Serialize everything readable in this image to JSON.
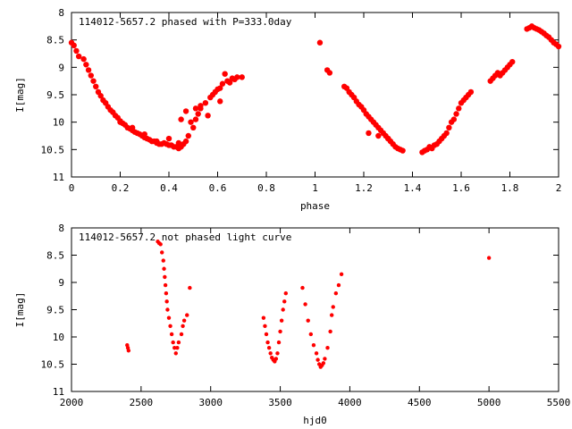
{
  "chart_data": [
    {
      "type": "scatter",
      "title": "114012-5657.2 phased with P=333.0day",
      "xlabel": "phase",
      "ylabel": "I[mag]",
      "xlim": [
        0,
        2
      ],
      "ylim": [
        11,
        8
      ],
      "y_inverted": true,
      "xticks": [
        "0",
        "0.2",
        "0.4",
        "0.6",
        "0.8",
        "1",
        "1.2",
        "1.4",
        "1.6",
        "1.8",
        "2"
      ],
      "yticks": [
        "8",
        "8.5",
        "9",
        "9.5",
        "10",
        "10.5",
        "11"
      ],
      "marker_color": "#ff0000",
      "grid": false,
      "series": [
        {
          "x": [
            0.0,
            0.01,
            0.02,
            0.03,
            0.05,
            0.06,
            0.07,
            0.08,
            0.09,
            0.1,
            0.11,
            0.12,
            0.13,
            0.14,
            0.15,
            0.16,
            0.17,
            0.18,
            0.19,
            0.2,
            0.21,
            0.22,
            0.23,
            0.24,
            0.25,
            0.26,
            0.27,
            0.28,
            0.29,
            0.3,
            0.31,
            0.32,
            0.33,
            0.34,
            0.35,
            0.36,
            0.37,
            0.38,
            0.39,
            0.4,
            0.41,
            0.42,
            0.43,
            0.44,
            0.45,
            0.46,
            0.47,
            0.48,
            0.5,
            0.51,
            0.52,
            0.53,
            0.55,
            0.57,
            0.59,
            0.61,
            0.62,
            0.64,
            0.66,
            0.68,
            0.7,
            0.45,
            0.47,
            0.49,
            0.51,
            0.53,
            0.56,
            0.61,
            0.2,
            0.25,
            0.3,
            0.35,
            0.4,
            0.44,
            0.58,
            0.6,
            0.63,
            0.65,
            0.67
          ],
          "y": [
            8.55,
            8.6,
            8.7,
            8.8,
            8.85,
            8.95,
            9.05,
            9.15,
            9.25,
            9.35,
            9.45,
            9.52,
            9.6,
            9.65,
            9.72,
            9.78,
            9.82,
            9.88,
            9.92,
            9.98,
            10.02,
            10.05,
            10.1,
            10.12,
            10.15,
            10.18,
            10.2,
            10.22,
            10.25,
            10.28,
            10.3,
            10.32,
            10.35,
            10.35,
            10.38,
            10.4,
            10.4,
            10.38,
            10.4,
            10.42,
            10.42,
            10.45,
            10.45,
            10.48,
            10.45,
            10.4,
            10.35,
            10.25,
            10.1,
            9.95,
            9.85,
            9.75,
            9.65,
            9.55,
            9.45,
            9.38,
            9.3,
            9.25,
            9.2,
            9.18,
            9.18,
            9.95,
            9.8,
            10.0,
            9.75,
            9.7,
            9.88,
            9.62,
            10.0,
            10.1,
            10.22,
            10.35,
            10.3,
            10.38,
            9.5,
            9.4,
            9.12,
            9.28,
            9.22
          ]
        },
        {
          "x": [
            1.02,
            1.05,
            1.06,
            1.12,
            1.13,
            1.14,
            1.15,
            1.16,
            1.17,
            1.18,
            1.19,
            1.2,
            1.21,
            1.22,
            1.23,
            1.24,
            1.25,
            1.26,
            1.27,
            1.28,
            1.29,
            1.3,
            1.31,
            1.32,
            1.33,
            1.34,
            1.35,
            1.36,
            1.22,
            1.26,
            1.3,
            1.44,
            1.45,
            1.46,
            1.47,
            1.48,
            1.49,
            1.5,
            1.51,
            1.52,
            1.53,
            1.54,
            1.55,
            1.56,
            1.57,
            1.58,
            1.59,
            1.6,
            1.61,
            1.62,
            1.63,
            1.64,
            1.72,
            1.73,
            1.74,
            1.75,
            1.76,
            1.77,
            1.78,
            1.79,
            1.8,
            1.81,
            1.87,
            1.88,
            1.89,
            1.9,
            1.91,
            1.92,
            1.93,
            1.94,
            1.95,
            1.96,
            1.97,
            1.98,
            1.99,
            2.0
          ],
          "y": [
            8.55,
            9.05,
            9.1,
            9.35,
            9.38,
            9.45,
            9.5,
            9.55,
            9.62,
            9.68,
            9.72,
            9.78,
            9.85,
            9.9,
            9.95,
            10.0,
            10.05,
            10.1,
            10.15,
            10.2,
            10.25,
            10.3,
            10.35,
            10.4,
            10.45,
            10.48,
            10.5,
            10.52,
            10.2,
            10.25,
            10.3,
            10.55,
            10.52,
            10.5,
            10.45,
            10.48,
            10.42,
            10.4,
            10.35,
            10.3,
            10.25,
            10.2,
            10.1,
            10.0,
            9.95,
            9.85,
            9.75,
            9.65,
            9.6,
            9.55,
            9.5,
            9.45,
            9.25,
            9.2,
            9.15,
            9.1,
            9.15,
            9.1,
            9.05,
            9.0,
            8.95,
            8.9,
            8.3,
            8.28,
            8.25,
            8.28,
            8.3,
            8.32,
            8.35,
            8.38,
            8.42,
            8.45,
            8.5,
            8.55,
            8.58,
            8.62
          ]
        }
      ]
    },
    {
      "type": "scatter",
      "title": "114012-5657.2 not phased light curve",
      "xlabel": "hjd0",
      "ylabel": "I[mag]",
      "xlim": [
        2000,
        5500
      ],
      "ylim": [
        11,
        8
      ],
      "y_inverted": true,
      "xticks": [
        "2000",
        "2500",
        "3000",
        "3500",
        "4000",
        "4500",
        "5000",
        "5500"
      ],
      "yticks": [
        "8",
        "8.5",
        "9",
        "9.5",
        "10",
        "10.5",
        "11"
      ],
      "marker_color": "#ff0000",
      "grid": false,
      "series": [
        {
          "x": [
            2400,
            2405,
            2410,
            2620,
            2630,
            2640,
            2650,
            2660,
            2665,
            2670,
            2675,
            2680,
            2685,
            2690,
            2700,
            2710,
            2720,
            2730,
            2740,
            2750,
            2760,
            2770,
            2790,
            2800,
            2810,
            2830,
            2850,
            3380,
            3390,
            3400,
            3410,
            3420,
            3430,
            3440,
            3450,
            3460,
            3470,
            3480,
            3490,
            3500,
            3510,
            3520,
            3530,
            3540,
            3660,
            3680,
            3700,
            3720,
            3740,
            3760,
            3770,
            3780,
            3790,
            3800,
            3810,
            3820,
            3840,
            3860,
            3870,
            3880,
            3900,
            3920,
            3940,
            5000
          ],
          "y": [
            10.15,
            10.2,
            10.25,
            8.25,
            8.28,
            8.3,
            8.45,
            8.6,
            8.75,
            8.9,
            9.05,
            9.2,
            9.35,
            9.5,
            9.65,
            9.8,
            9.95,
            10.1,
            10.2,
            10.3,
            10.2,
            10.1,
            9.95,
            9.8,
            9.7,
            9.6,
            9.1,
            9.65,
            9.8,
            9.95,
            10.1,
            10.2,
            10.3,
            10.38,
            10.42,
            10.45,
            10.4,
            10.3,
            10.1,
            9.9,
            9.7,
            9.5,
            9.35,
            9.2,
            9.1,
            9.4,
            9.7,
            9.95,
            10.15,
            10.3,
            10.42,
            10.5,
            10.55,
            10.52,
            10.48,
            10.4,
            10.2,
            9.9,
            9.6,
            9.45,
            9.2,
            9.05,
            8.85,
            8.55
          ]
        }
      ]
    }
  ]
}
